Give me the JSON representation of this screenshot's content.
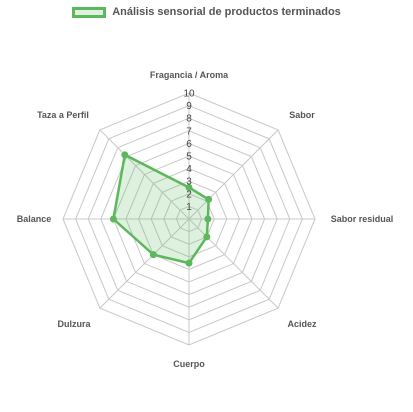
{
  "chart_data": {
    "type": "radar",
    "title": "",
    "legend": {
      "position": "top",
      "entries": [
        "Análisis sensorial de productos terminados"
      ]
    },
    "axes": [
      "Fragancia / Aroma",
      "Sabor",
      "Sabor residual",
      "Acidez",
      "Cuerpo",
      "Dulzura",
      "Balance",
      "Taza a Perfil"
    ],
    "ticks": [
      "1",
      "2",
      "3",
      "4",
      "5",
      "6",
      "7",
      "8",
      "9",
      "10"
    ],
    "range": [
      0,
      10
    ],
    "grid": true,
    "series": [
      {
        "name": "Análisis sensorial de productos terminados",
        "values": [
          2.5,
          2.2,
          1.5,
          2.0,
          3.5,
          4.0,
          6.0,
          7.2
        ],
        "color": "#5cb85c",
        "fill": "rgba(92,184,92,0.2)"
      }
    ]
  }
}
